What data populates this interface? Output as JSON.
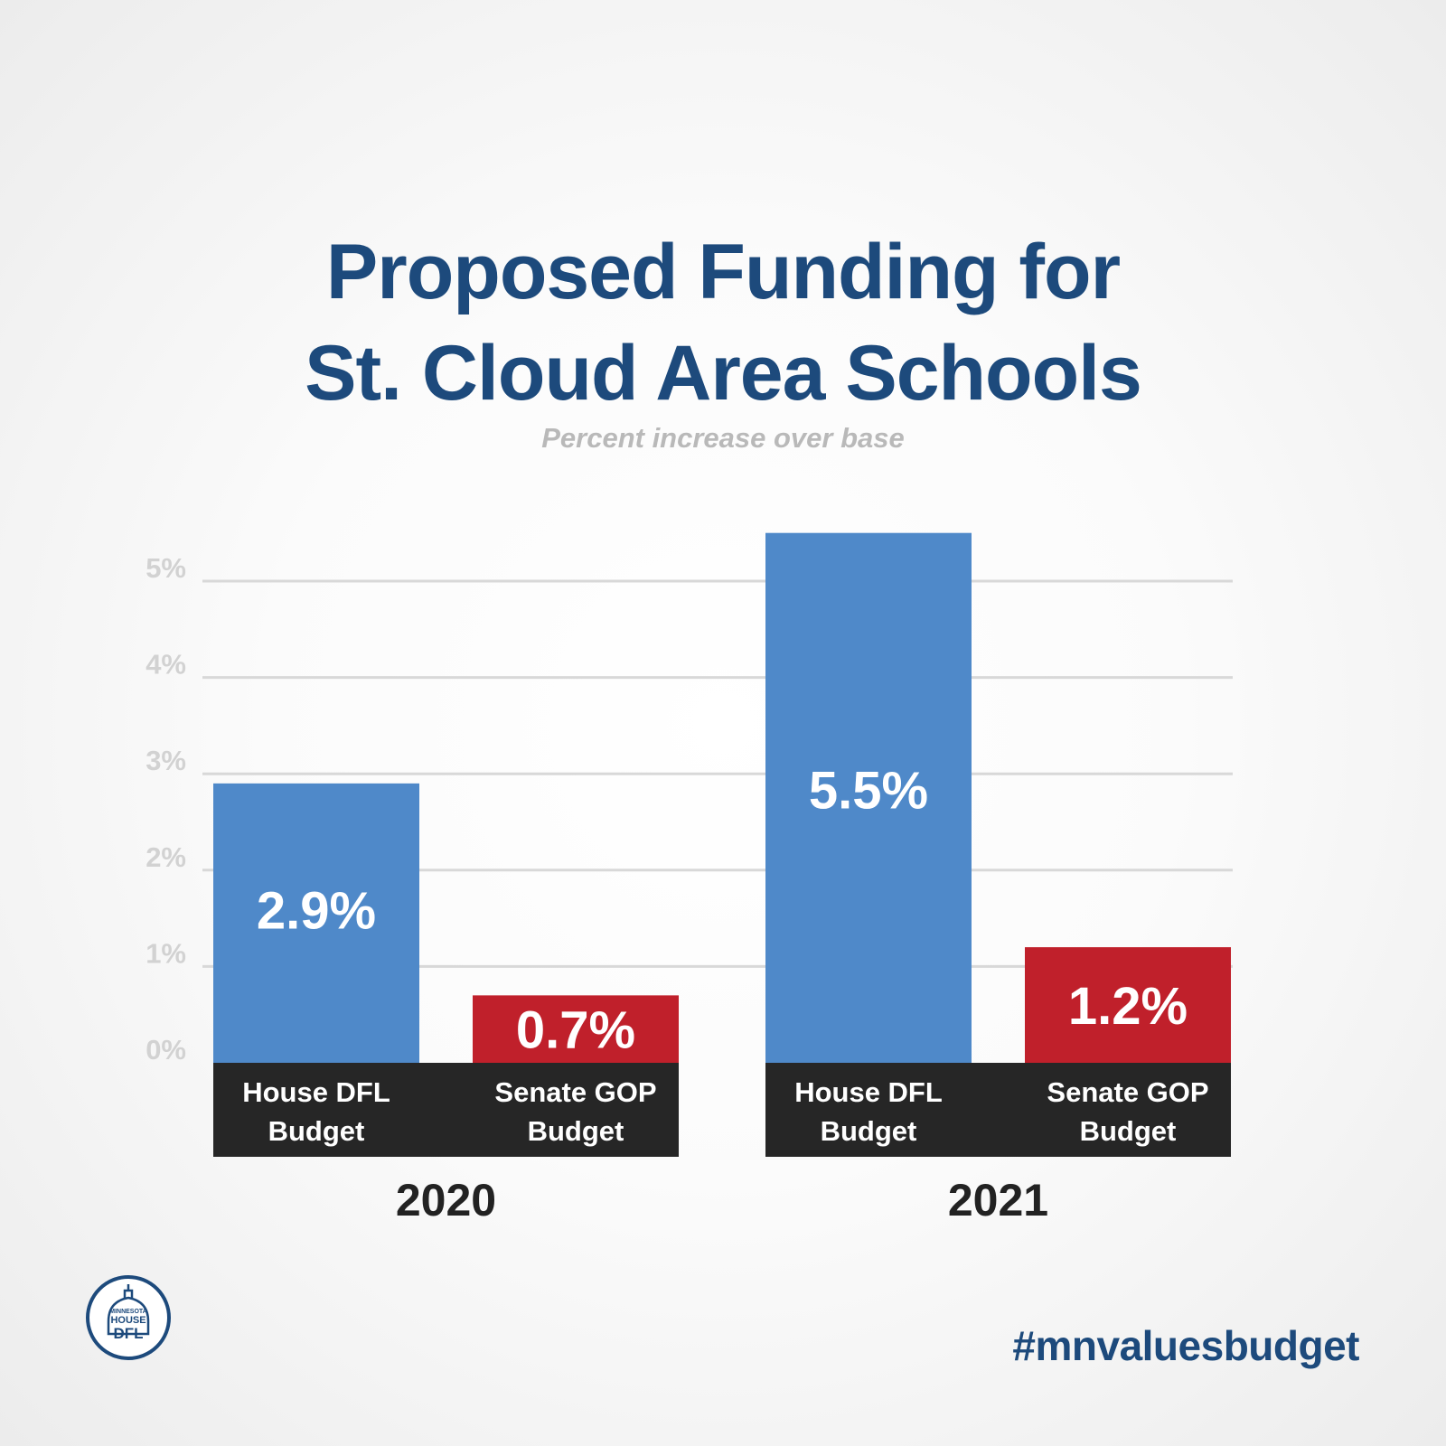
{
  "header": {
    "title_line1": "Proposed Funding for",
    "title_line2": "St. Cloud Area Schools",
    "subtitle": "Percent increase over base"
  },
  "chart_data": {
    "type": "bar",
    "unit": "%",
    "ylim": [
      0,
      5
    ],
    "yticks": [
      "0%",
      "1%",
      "2%",
      "3%",
      "4%",
      "5%"
    ],
    "grid": true,
    "categories": [
      "2020",
      "2021"
    ],
    "series": [
      {
        "name_line1": "House DFL",
        "name_line2": "Budget",
        "color": "#4f89c9",
        "values": [
          2.9,
          5.5
        ],
        "labels": [
          "2.9%",
          "5.5%"
        ]
      },
      {
        "name_line1": "Senate GOP",
        "name_line2": "Budget",
        "color": "#c0202b",
        "values": [
          0.7,
          1.2
        ],
        "labels": [
          "0.7%",
          "1.2%"
        ]
      }
    ]
  },
  "footer": {
    "hashtag": "#mnvaluesbudget",
    "logo_text_top": "MINNESOTA",
    "logo_text_mid": "HOUSE",
    "logo_text_bottom": "DFL"
  },
  "colors": {
    "title": "#1d4a7c",
    "label_band": "#262626",
    "grid": "#d8d8d8",
    "tick": "#d2d2d2"
  }
}
